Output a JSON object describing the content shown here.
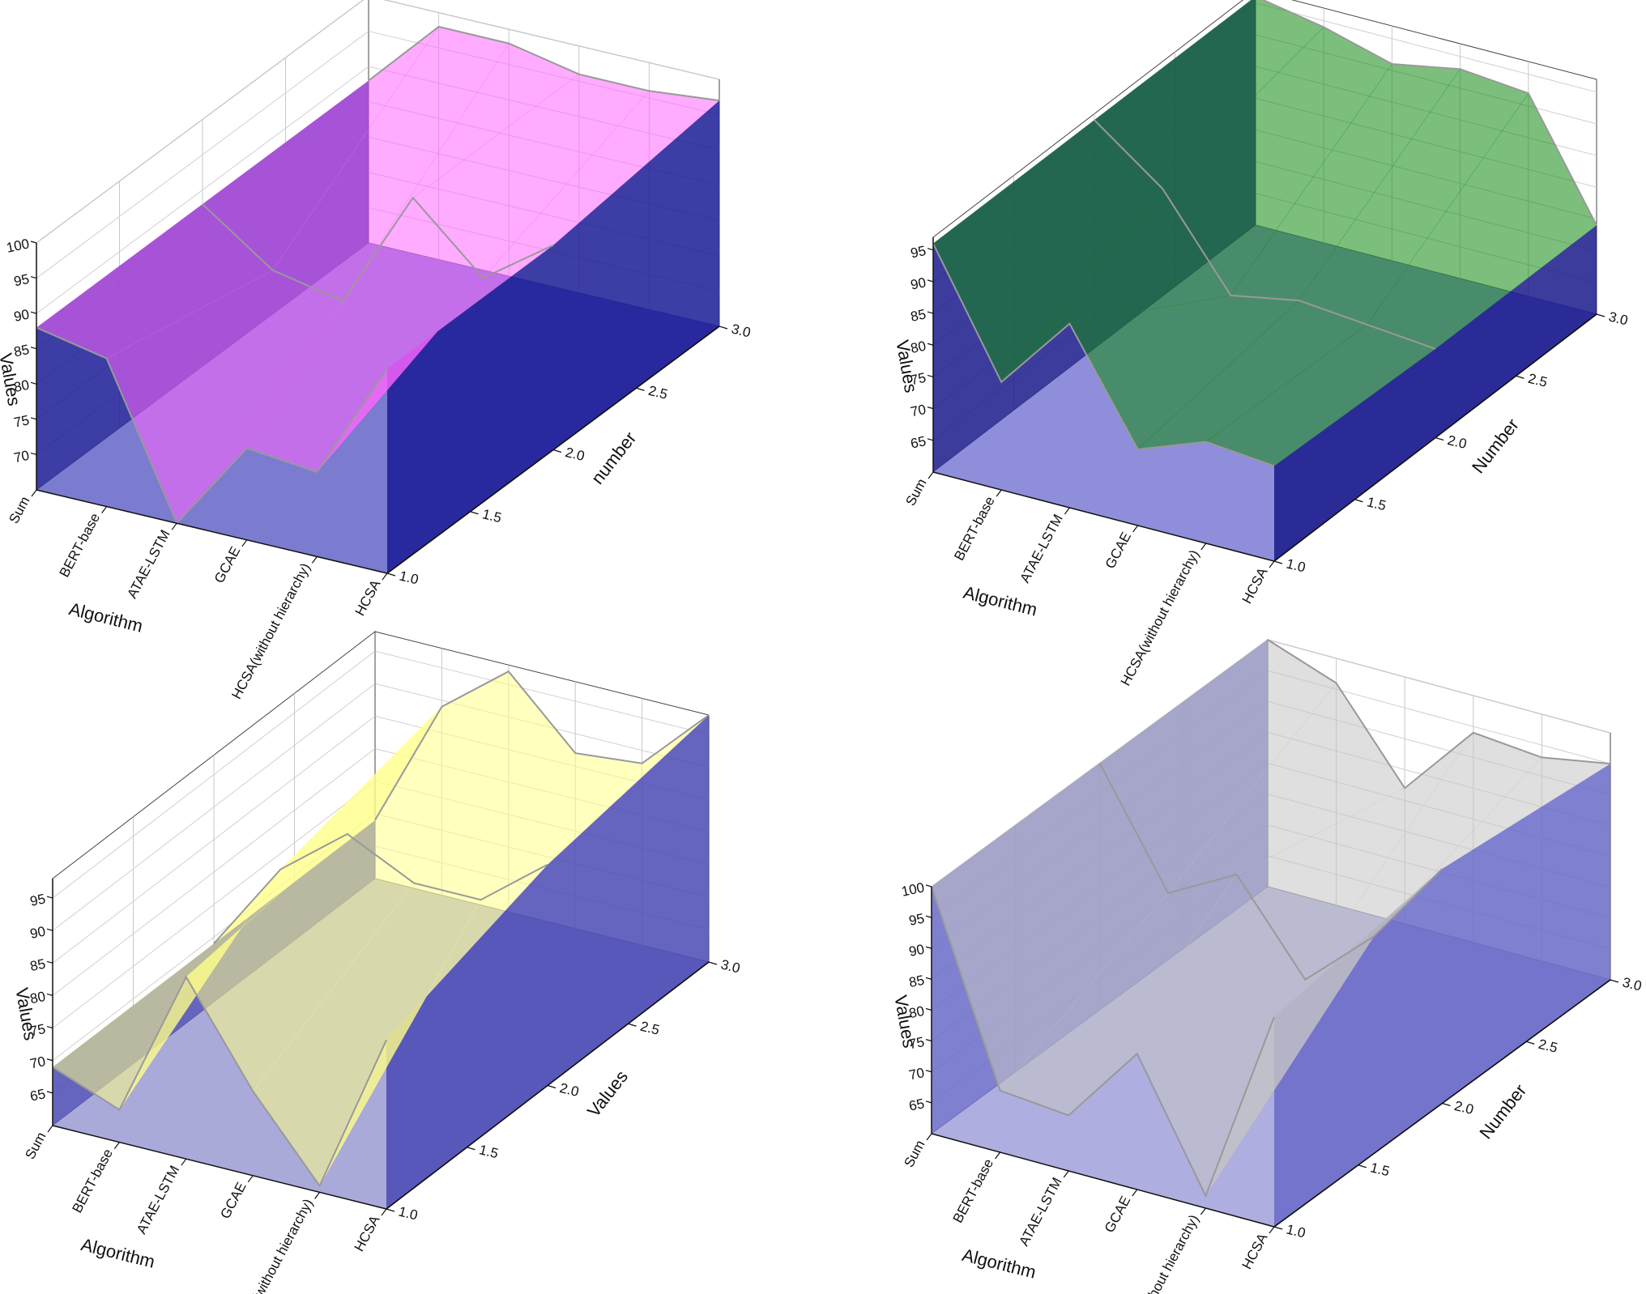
{
  "chart_data": [
    {
      "type": "area",
      "title": "",
      "xlabel": "Algorithm",
      "ylabel": "number",
      "zlabel": "Values",
      "categories": [
        "Sum",
        "BERT-base",
        "ATAE-LSTM",
        "GCAE",
        "HCSA(without hierarchy)",
        "HCSA"
      ],
      "y_ticks": [
        "1.0",
        "1.5",
        "2.0",
        "2.5",
        "3.0"
      ],
      "z_ticks": [
        "70",
        "75",
        "80",
        "85",
        "90",
        "95",
        "100"
      ],
      "zlim": [
        65,
        100
      ],
      "fill_color": "#ff66ff",
      "side_color": "#1b1b96",
      "floor_color": "#6464c8",
      "series": [
        {
          "y": 1,
          "values": [
            88,
            86,
            65,
            78,
            77,
            94
          ]
        },
        {
          "y": 2,
          "values": [
            88,
            81,
            79,
            96,
            87,
            94
          ]
        },
        {
          "y": 3,
          "values": [
            88,
            98,
            98,
            96,
            96,
            97
          ]
        }
      ]
    },
    {
      "type": "area",
      "title": "",
      "xlabel": "Algorithm",
      "ylabel": "Number",
      "zlabel": "Values",
      "categories": [
        "Sum",
        "BERT-base",
        "ATAE-LSTM",
        "GCAE",
        "HCSA(without hierarchy)",
        "HCSA"
      ],
      "y_ticks": [
        "1.0",
        "1.5",
        "2.0",
        "2.5",
        "3.0"
      ],
      "z_ticks": [
        "65",
        "70",
        "75",
        "80",
        "85",
        "90",
        "95"
      ],
      "zlim": [
        60,
        97
      ],
      "fill_color": "#108a10",
      "side_color": "#1a1a8c",
      "floor_color": "#7a7ad4",
      "series": [
        {
          "y": 1,
          "values": [
            96,
            77,
            89,
            72,
            76,
            75
          ]
        },
        {
          "y": 2,
          "values": [
            96,
            88,
            74,
            76,
            75,
            74
          ]
        },
        {
          "y": 3,
          "values": [
            96,
            94,
            91,
            93,
            92,
            74
          ]
        }
      ]
    },
    {
      "type": "area",
      "title": "",
      "xlabel": "Algorithm",
      "ylabel": "Values",
      "zlabel": "Values",
      "categories": [
        "Sum",
        "BERT-base",
        "ATAE-LSTM",
        "GCAE",
        "HCSA(without hierarchy)",
        "HCSA"
      ],
      "y_ticks": [
        "1.0",
        "1.5",
        "2.0",
        "2.5",
        "3.0"
      ],
      "z_ticks": [
        "65",
        "70",
        "75",
        "80",
        "85",
        "90",
        "95"
      ],
      "zlim": [
        60,
        98
      ],
      "fill_color": "#ffff88",
      "side_color": "#4a4ab4",
      "floor_color": "#9a9ad4",
      "series": [
        {
          "y": 1,
          "values": [
            69,
            65,
            88,
            73,
            61,
            86
          ]
        },
        {
          "y": 2,
          "values": [
            69,
            83,
            91,
            86,
            86,
            94
          ]
        },
        {
          "y": 3,
          "values": [
            69,
            89,
            97,
            87,
            88,
            98
          ]
        }
      ]
    },
    {
      "type": "area",
      "title": "",
      "xlabel": "Algorithm",
      "ylabel": "Number",
      "zlabel": "Values",
      "categories": [
        "Sum",
        "BERT-base",
        "ATAE-LSTM",
        "GCAE",
        "HCSA(without hierarchy)",
        "HCSA"
      ],
      "y_ticks": [
        "1.0",
        "1.5",
        "2.0",
        "2.5",
        "3.0"
      ],
      "z_ticks": [
        "65",
        "70",
        "75",
        "80",
        "85",
        "90",
        "95",
        "100"
      ],
      "zlim": [
        60,
        100
      ],
      "fill_color": "#c4c4c4",
      "side_color": "#6a6ac8",
      "floor_color": "#a0a0dc",
      "series": [
        {
          "y": 1,
          "values": [
            100,
            70,
            69,
            82,
            62,
            94
          ]
        },
        {
          "y": 2,
          "values": [
            100,
            82,
            88,
            74,
            84,
            98
          ]
        },
        {
          "y": 3,
          "values": [
            100,
            96,
            82,
            94,
            93,
            95
          ]
        }
      ]
    }
  ]
}
